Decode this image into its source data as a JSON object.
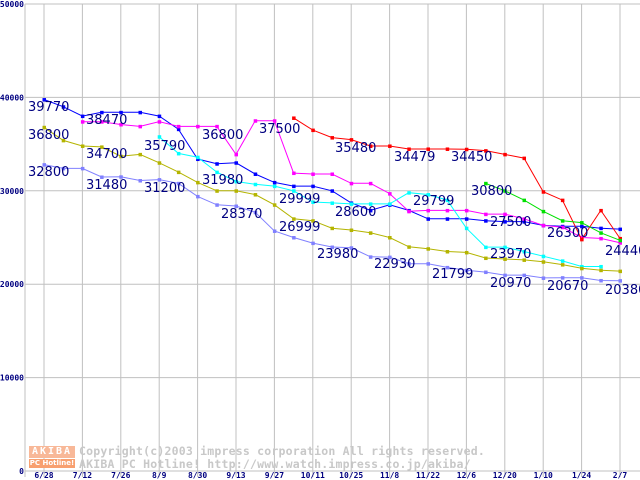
{
  "chart_data": {
    "type": "line",
    "title": "",
    "xlabel": "",
    "ylabel": "",
    "ylim": [
      0,
      50000
    ],
    "grid": true,
    "yticks": [
      "0",
      "10000",
      "20000",
      "30000",
      "40000",
      "50000"
    ],
    "ytick_values": [
      0,
      10000,
      20000,
      30000,
      40000,
      50000
    ],
    "xtick_labels": [
      "6/28",
      "7/12",
      "7/26",
      "8/9",
      "8/30",
      "9/13",
      "9/27",
      "10/11",
      "10/25",
      "11/8",
      "11/22",
      "12/6",
      "12/20",
      "1/10",
      "1/24",
      "2/7"
    ],
    "points_per_tick": 2,
    "series": [
      {
        "name": "series-blue",
        "color": "#0000ff",
        "start": 0,
        "values": [
          39770,
          39000,
          38000,
          38400,
          38400,
          38400,
          38000,
          36600,
          33400,
          32900,
          33000,
          31800,
          30900,
          30500,
          30500,
          30000,
          28700,
          27900,
          28500,
          27900,
          27000,
          27000,
          27000,
          26800,
          26700,
          26700,
          26300,
          26200,
          26200,
          26000,
          25900
        ]
      },
      {
        "name": "series-magenta",
        "color": "#ff00ff",
        "start": 2,
        "values": [
          37400,
          37400,
          37100,
          36900,
          37400,
          36900,
          36900,
          36900,
          33900,
          37500,
          37500,
          31900,
          31800,
          31800,
          30800,
          30800,
          29700,
          27800,
          27900,
          27900,
          27900,
          27500,
          27500,
          27000,
          26300,
          26100,
          25000,
          24900,
          24440
        ]
      },
      {
        "name": "series-cyan",
        "color": "#00ffff",
        "start": 6,
        "values": [
          35790,
          34000,
          33600,
          32000,
          31000,
          30700,
          30500,
          30000,
          28800,
          28700,
          28600,
          28600,
          28600,
          29800,
          29600,
          29000,
          26000,
          23970,
          23970,
          23500,
          23000,
          22500,
          21900,
          21900
        ]
      },
      {
        "name": "series-red",
        "color": "#ff0000",
        "start": 13,
        "values": [
          37800,
          36500,
          35700,
          35480,
          34800,
          34800,
          34479,
          34479,
          34479,
          34450,
          34300,
          33900,
          33500,
          29900,
          29000,
          24800,
          27900,
          24900
        ]
      },
      {
        "name": "series-green",
        "color": "#00e000",
        "start": 23,
        "values": [
          30800,
          30000,
          29000,
          27800,
          26800,
          26600,
          25500,
          24700
        ]
      },
      {
        "name": "series-olive",
        "color": "#b4b400",
        "start": 0,
        "values": [
          36800,
          35400,
          34800,
          34700,
          33700,
          33900,
          33000,
          32000,
          30900,
          30000,
          30000,
          29600,
          28500,
          26999,
          26800,
          26000,
          25800,
          25500,
          25000,
          24000,
          23800,
          23500,
          23400,
          22800,
          22700,
          22600,
          22400,
          22100,
          21700,
          21500,
          21400
        ]
      },
      {
        "name": "series-lavender",
        "color": "#8080ff",
        "start": 0,
        "values": [
          32800,
          32400,
          32400,
          31480,
          31500,
          31100,
          31200,
          30800,
          29400,
          28500,
          28370,
          27700,
          25700,
          25000,
          24400,
          23980,
          23900,
          22930,
          22900,
          22200,
          22200,
          21799,
          21500,
          21300,
          20970,
          20970,
          20670,
          20700,
          20700,
          20400,
          20380
        ]
      }
    ],
    "annotations": [
      "39770",
      "36800",
      "32800",
      "38470",
      "34700",
      "31480",
      "35790",
      "31200",
      "36800",
      "31980",
      "28370",
      "37500",
      "29999",
      "26999",
      "23980",
      "28600",
      "35480",
      "22930",
      "34479",
      "29799",
      "21799",
      "34450",
      "30800",
      "27500",
      "23970",
      "20970",
      "26300",
      "20670",
      "24440",
      "20380"
    ]
  },
  "watermark": {
    "logo_top": "AKIBA",
    "logo_bottom": "PC Hotline!",
    "line1": "Copyright(c)2003 impress corporation All rights reserved.",
    "line2": "AKIBA PC Hotline!  http://www.watch.impress.co.jp/akiba/"
  }
}
